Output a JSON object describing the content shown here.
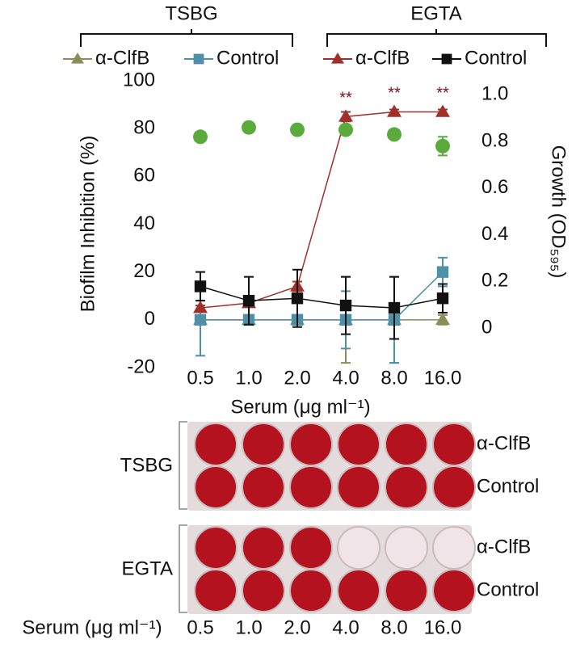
{
  "chart_data": {
    "type": "line",
    "legend_groups": [
      "TSBG",
      "EGTA"
    ],
    "categories": [
      "0.5",
      "1.0",
      "2.0",
      "4.0",
      "8.0",
      "16.0"
    ],
    "x_label": "Serum (μg ml⁻¹)",
    "y_label": "Biofilm Inhibition (%)",
    "y2_label": "Growth (OD₅₉₅)",
    "ylim": [
      -20,
      100
    ],
    "yticks": [
      -20,
      0,
      20,
      40,
      60,
      80,
      100
    ],
    "y2lim": [
      -0.17,
      1.06
    ],
    "y2ticks": [
      0,
      0.2,
      0.4,
      0.6,
      0.8,
      {
        "value": 1.0,
        "label": "1.0"
      }
    ],
    "series": [
      {
        "name": "α-ClfB",
        "color": "#8a8f5a",
        "marker": "triangle",
        "line": true,
        "values": [
          0,
          0,
          0,
          0,
          0,
          0
        ],
        "errors": [
          2,
          2,
          2,
          18,
          18,
          2
        ]
      },
      {
        "name": "Control",
        "color": "#4f8fa8",
        "marker": "square",
        "line": true,
        "values": [
          0,
          0,
          0,
          0,
          0,
          20
        ],
        "errors": [
          15,
          2,
          2,
          12,
          18,
          6
        ]
      },
      {
        "name": "α-ClfB",
        "color": "#a0302a",
        "marker": "triangle",
        "line": true,
        "values": [
          5,
          7,
          14,
          85,
          87,
          87
        ],
        "errors": [
          1,
          1,
          2,
          2,
          1,
          1
        ]
      },
      {
        "name": "Control",
        "color": "#111111",
        "marker": "square",
        "line": true,
        "values": [
          14,
          8,
          9,
          6,
          5,
          9
        ],
        "errors": [
          6,
          10,
          12,
          12,
          13,
          6
        ]
      },
      {
        "color": "#5aab3c",
        "marker": "circle",
        "line": false,
        "axis": "y2",
        "values": [
          0.82,
          0.86,
          0.85,
          0.85,
          0.83,
          0.78
        ],
        "errors": [
          0.02,
          0.02,
          0.01,
          0.01,
          0.01,
          0.04
        ]
      }
    ],
    "annotations": [
      {
        "text": "**",
        "at": "4.0"
      },
      {
        "text": "**",
        "at": "8.0"
      },
      {
        "text": "**",
        "at": "16.0"
      }
    ],
    "annotation_series": 2
  },
  "plates": [
    {
      "label": "TSBG",
      "rows": [
        "α-ClfB",
        "Control"
      ]
    },
    {
      "label": "EGTA",
      "rows": [
        "α-ClfB",
        "Control"
      ]
    }
  ]
}
